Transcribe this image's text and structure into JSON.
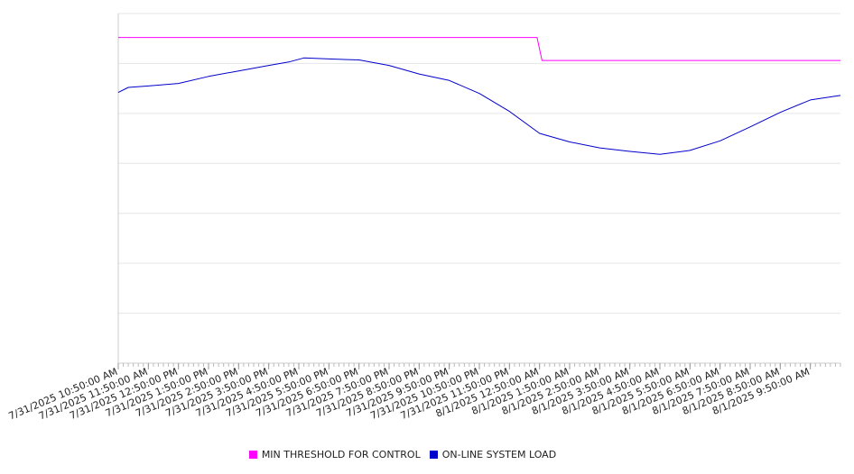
{
  "chart_data": {
    "type": "line",
    "title": "",
    "xlabel": "",
    "ylabel": "",
    "ylim": [
      0,
      7
    ],
    "y_gridlines": 7,
    "y_tick_labels_shown": false,
    "grid": "horizontal",
    "legend_position": "bottom-center",
    "x_start": "7/31/2025 10:50:00 AM",
    "x_end": "8/1/2025 10:50:00 AM",
    "x_tick_labels": [
      "7/31/2025 10:50:00 AM",
      "7/31/2025 11:50:00 AM",
      "7/31/2025 12:50:00 PM",
      "7/31/2025 1:50:00 PM",
      "7/31/2025 2:50:00 PM",
      "7/31/2025 3:50:00 PM",
      "7/31/2025 4:50:00 PM",
      "7/31/2025 5:50:00 PM",
      "7/31/2025 6:50:00 PM",
      "7/31/2025 7:50:00 PM",
      "7/31/2025 8:50:00 PM",
      "7/31/2025 9:50:00 PM",
      "7/31/2025 10:50:00 PM",
      "7/31/2025 11:50:00 PM",
      "8/1/2025 12:50:00 AM",
      "8/1/2025 1:50:00 AM",
      "8/1/2025 2:50:00 AM",
      "8/1/2025 3:50:00 AM",
      "8/1/2025 4:50:00 AM",
      "8/1/2025 5:50:00 AM",
      "8/1/2025 6:50:00 AM",
      "8/1/2025 7:50:00 AM",
      "8/1/2025 8:50:00 AM",
      "8/1/2025 9:50:00 AM"
    ],
    "series": [
      {
        "name": "MIN THRESHOLD FOR CONTROL",
        "color": "#ff00ff",
        "points": [
          {
            "x": "7/31/2025 10:50:00 AM",
            "y": 6.52
          },
          {
            "x": "8/1/2025 12:45:00 AM",
            "y": 6.52
          },
          {
            "x": "8/1/2025 12:55:00 AM",
            "y": 6.06
          },
          {
            "x": "8/1/2025 10:50:00 AM",
            "y": 6.06
          }
        ]
      },
      {
        "name": "ON-LINE SYSTEM LOAD",
        "color": "#0000cc",
        "points": [
          {
            "x": "7/31/2025 10:50:00 AM",
            "y": 5.42
          },
          {
            "x": "7/31/2025 11:10:00 AM",
            "y": 5.52
          },
          {
            "x": "7/31/2025 11:50:00 AM",
            "y": 5.55
          },
          {
            "x": "7/31/2025 12:50:00 PM",
            "y": 5.6
          },
          {
            "x": "7/31/2025 1:50:00 PM",
            "y": 5.74
          },
          {
            "x": "7/31/2025 2:50:00 PM",
            "y": 5.85
          },
          {
            "x": "7/31/2025 3:50:00 PM",
            "y": 5.96
          },
          {
            "x": "7/31/2025 4:30:00 PM",
            "y": 6.03
          },
          {
            "x": "7/31/2025 5:00:00 PM",
            "y": 6.11
          },
          {
            "x": "7/31/2025 5:50:00 PM",
            "y": 6.09
          },
          {
            "x": "7/31/2025 6:50:00 PM",
            "y": 6.07
          },
          {
            "x": "7/31/2025 7:50:00 PM",
            "y": 5.96
          },
          {
            "x": "7/31/2025 8:50:00 PM",
            "y": 5.79
          },
          {
            "x": "7/31/2025 9:50:00 PM",
            "y": 5.66
          },
          {
            "x": "7/31/2025 10:50:00 PM",
            "y": 5.4
          },
          {
            "x": "7/31/2025 11:50:00 PM",
            "y": 5.04
          },
          {
            "x": "8/1/2025 12:50:00 AM",
            "y": 4.6
          },
          {
            "x": "8/1/2025 1:50:00 AM",
            "y": 4.43
          },
          {
            "x": "8/1/2025 2:50:00 AM",
            "y": 4.31
          },
          {
            "x": "8/1/2025 3:50:00 AM",
            "y": 4.24
          },
          {
            "x": "8/1/2025 4:50:00 AM",
            "y": 4.18
          },
          {
            "x": "8/1/2025 5:50:00 AM",
            "y": 4.26
          },
          {
            "x": "8/1/2025 6:50:00 AM",
            "y": 4.45
          },
          {
            "x": "8/1/2025 7:50:00 AM",
            "y": 4.73
          },
          {
            "x": "8/1/2025 8:50:00 AM",
            "y": 5.02
          },
          {
            "x": "8/1/2025 9:50:00 AM",
            "y": 5.27
          },
          {
            "x": "8/1/2025 10:50:00 AM",
            "y": 5.36
          }
        ]
      }
    ]
  },
  "legend": {
    "items": [
      {
        "label": "MIN THRESHOLD FOR CONTROL",
        "color": "#ff00ff"
      },
      {
        "label": "ON-LINE SYSTEM LOAD",
        "color": "#0000cc"
      }
    ]
  }
}
